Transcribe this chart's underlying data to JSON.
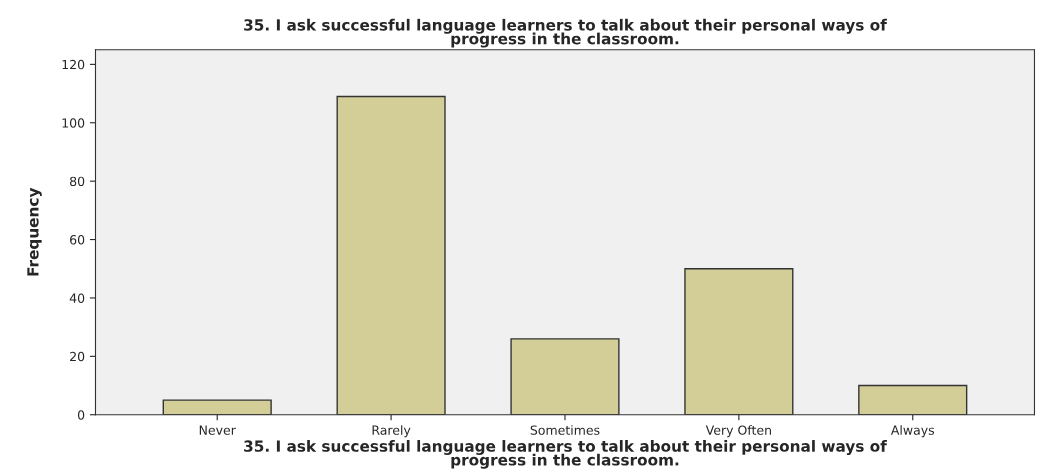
{
  "chart_data": {
    "type": "bar",
    "title": "35. I ask successful language learners to talk about their personal ways of\nprogress in the classroom.",
    "xlabel": "35. I ask successful language learners to talk about their personal ways of\nprogress in the classroom.",
    "ylabel": "Frequency",
    "categories": [
      "Never",
      "Rarely",
      "Sometimes",
      "Very Often",
      "Always"
    ],
    "values": [
      5,
      109,
      26,
      50,
      10
    ],
    "color": "#d3ce97",
    "ylim": [
      0,
      125
    ],
    "yticks": [
      0,
      20,
      40,
      60,
      80,
      100,
      120
    ],
    "grid": false
  }
}
